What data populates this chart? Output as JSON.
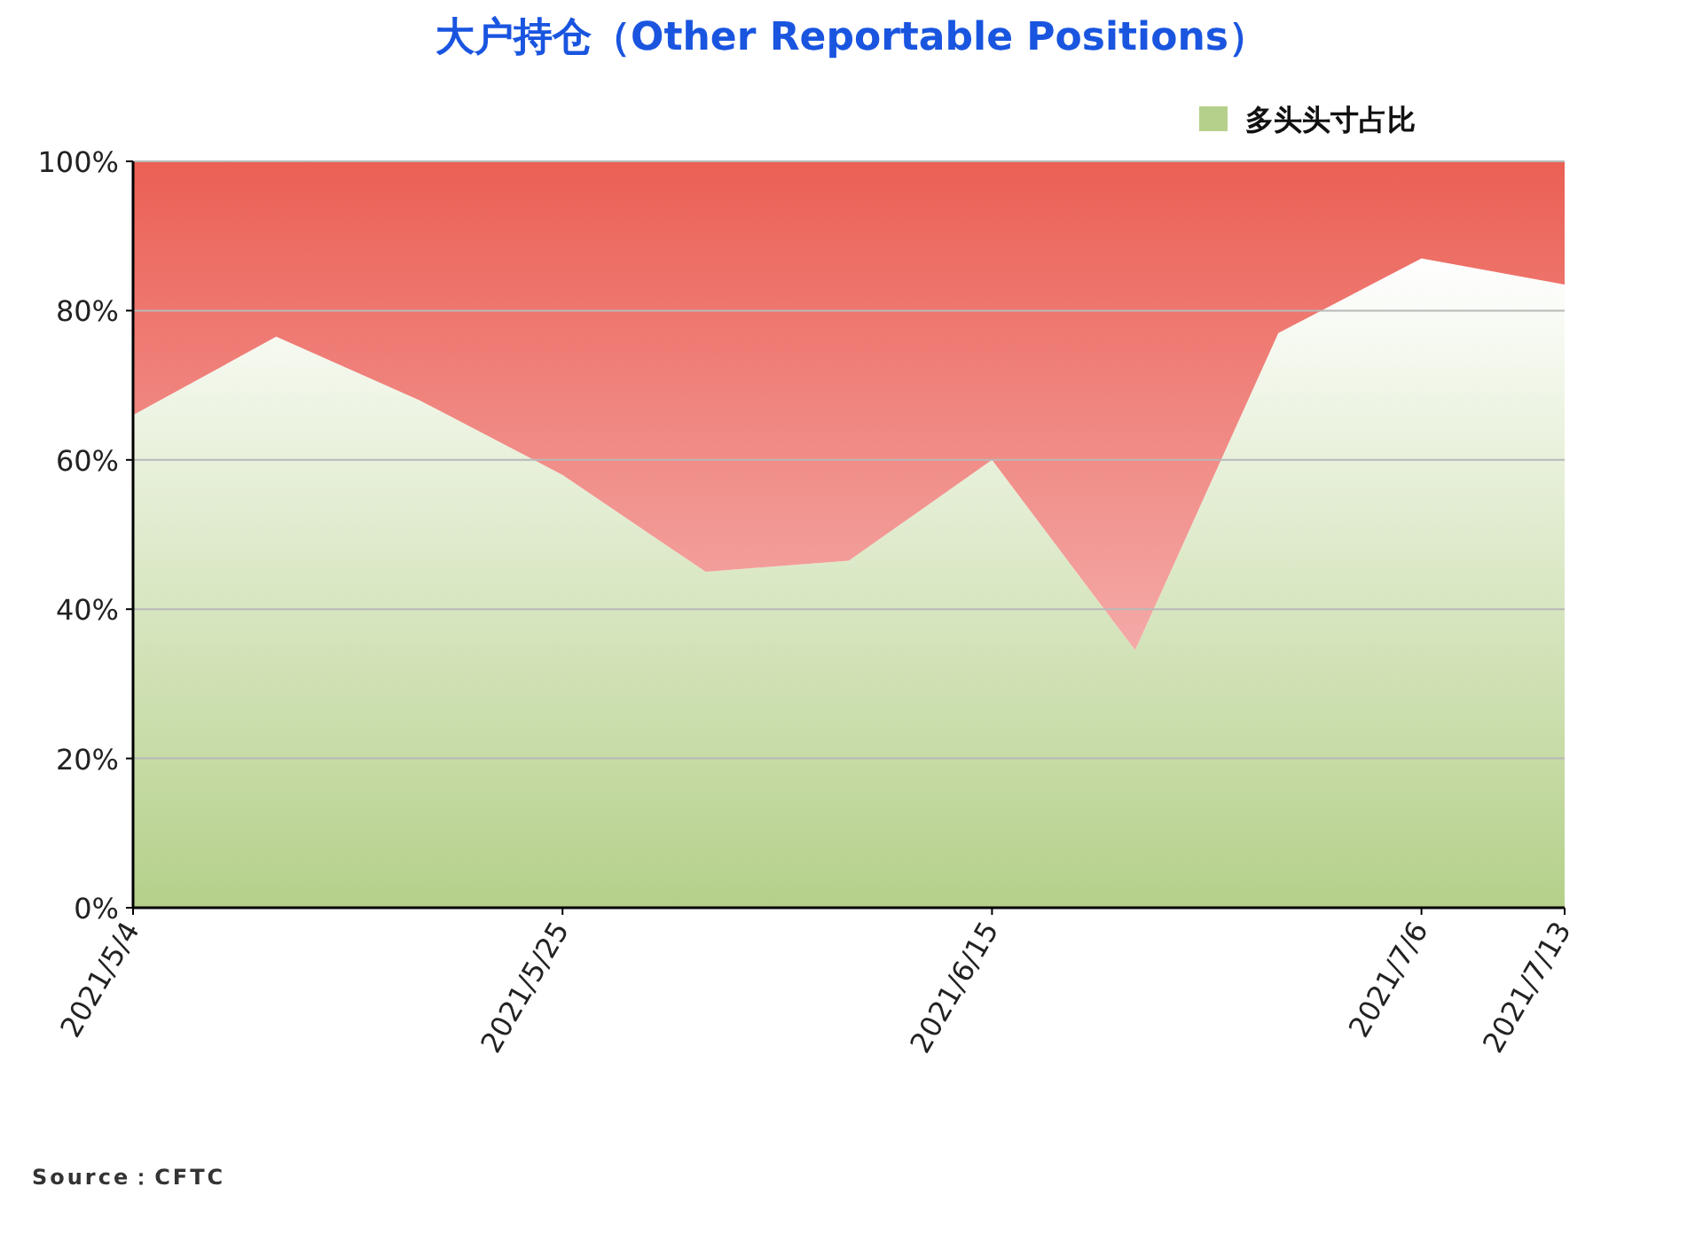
{
  "chart_data": {
    "type": "area",
    "title": "大户持仓（Other Reportable Positions）",
    "stacked": true,
    "x": [
      "2021-05-04",
      "2021-05-11",
      "2021-05-18",
      "2021-05-25",
      "2021-06-01",
      "2021-06-08",
      "2021-06-15",
      "2021-06-22",
      "2021-06-29",
      "2021-07-06",
      "2021-07-13"
    ],
    "series": [
      {
        "name": "多头头寸占比",
        "color": "#b5d08a",
        "values": [
          66,
          76.5,
          68,
          58,
          45,
          46.5,
          60,
          34.5,
          77,
          87,
          83.5
        ]
      },
      {
        "color": "#eb6055",
        "values": [
          34,
          23.5,
          32,
          42,
          55,
          53.5,
          40,
          65.5,
          23,
          13,
          16.5
        ]
      }
    ],
    "xlim": [
      "2021-05-04",
      "2021-07-13"
    ],
    "xticks": [
      {
        "value": "2021-05-04",
        "label": "2021/5/4"
      },
      {
        "value": "2021-05-25",
        "label": "2021/5/25"
      },
      {
        "value": "2021-06-15",
        "label": "2021/6/15"
      },
      {
        "value": "2021-07-06",
        "label": "2021/7/6"
      },
      {
        "value": "2021-07-13",
        "label": "2021/7/13"
      }
    ],
    "ylim": [
      0,
      100
    ],
    "yticks": [
      {
        "value": 0,
        "label": "0%"
      },
      {
        "value": 20,
        "label": "20%"
      },
      {
        "value": 40,
        "label": "40%"
      },
      {
        "value": 60,
        "label": "60%"
      },
      {
        "value": 80,
        "label": "80%"
      },
      {
        "value": 100,
        "label": "100%"
      }
    ],
    "grid": "y",
    "legend": "top right",
    "annotations": [
      "Source：CFTC"
    ]
  }
}
